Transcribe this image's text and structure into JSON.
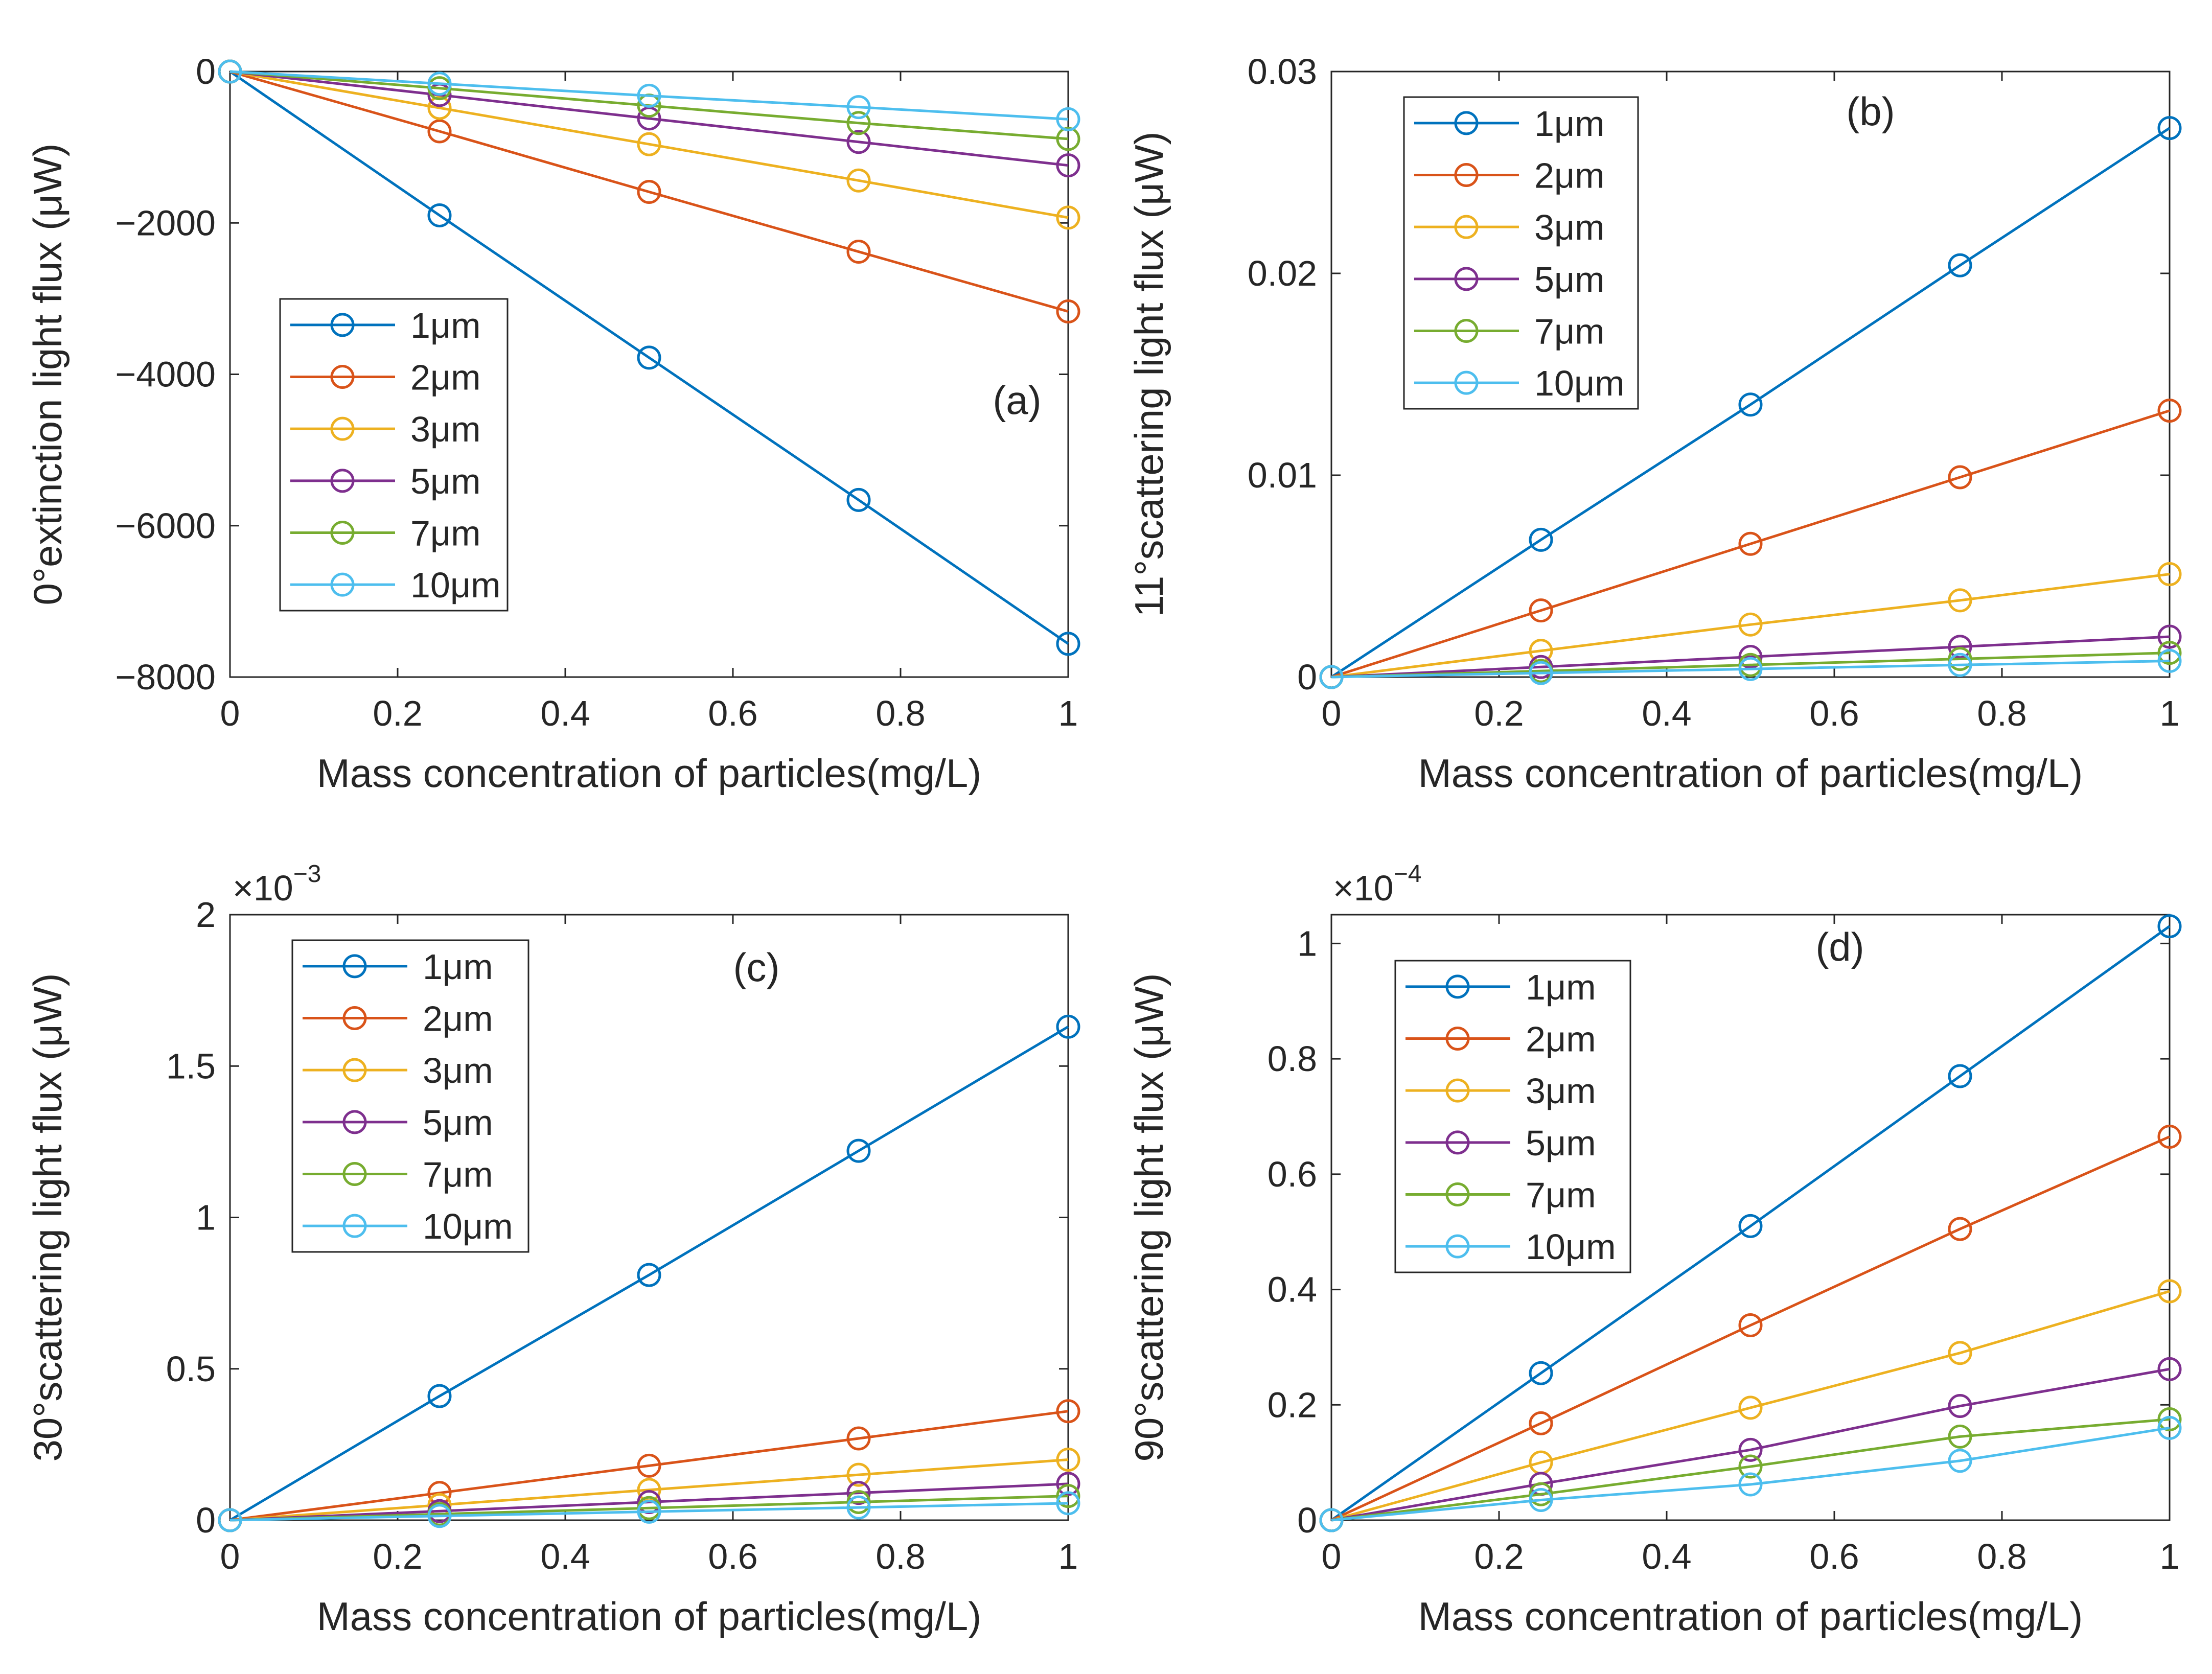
{
  "figure": {
    "panel_labels": [
      "(a)",
      "(b)",
      "(c)",
      "(d)"
    ]
  },
  "colors": {
    "1μm": "#0072BD",
    "2μm": "#D95319",
    "3μm": "#EDB120",
    "5μm": "#7E2F8E",
    "7μm": "#77AC30",
    "10μm": "#4DBEEE",
    "axis": "#262626"
  },
  "chart_data": [
    {
      "type": "line",
      "panel": "(a)",
      "title": "",
      "xlabel": "Mass concentration of particles(mg/L)",
      "ylabel": "0°extinction light flux (μW)",
      "x": [
        0,
        0.25,
        0.5,
        0.75,
        1
      ],
      "xlim": [
        0,
        1
      ],
      "ylim": [
        -8000,
        0
      ],
      "xticks": [
        0,
        0.2,
        0.4,
        0.6,
        0.8,
        1
      ],
      "xtick_labels": [
        "0",
        "0.2",
        "0.4",
        "0.6",
        "0.8",
        "1"
      ],
      "yticks": [
        0,
        -2000,
        -4000,
        -6000,
        -8000
      ],
      "ytick_labels": [
        "0",
        "−2000",
        "−4000",
        "−6000",
        "−8000"
      ],
      "exponent_label": "",
      "legend_position": "center-left",
      "marker": "circle",
      "series": [
        {
          "name": "1μm",
          "values": [
            0,
            -1900,
            -3780,
            -5660,
            -7560
          ]
        },
        {
          "name": "2μm",
          "values": [
            0,
            -790,
            -1590,
            -2380,
            -3170
          ]
        },
        {
          "name": "3μm",
          "values": [
            0,
            -480,
            -960,
            -1440,
            -1930
          ]
        },
        {
          "name": "5μm",
          "values": [
            0,
            -310,
            -620,
            -930,
            -1240
          ]
        },
        {
          "name": "7μm",
          "values": [
            0,
            -220,
            -450,
            -680,
            -890
          ]
        },
        {
          "name": "10μm",
          "values": [
            0,
            -160,
            -320,
            -470,
            -630
          ]
        }
      ]
    },
    {
      "type": "line",
      "panel": "(b)",
      "title": "",
      "xlabel": "Mass concentration of particles(mg/L)",
      "ylabel": "11°scattering light flux (μW)",
      "x": [
        0,
        0.25,
        0.5,
        0.75,
        1
      ],
      "xlim": [
        0,
        1
      ],
      "ylim": [
        0,
        0.03
      ],
      "xticks": [
        0,
        0.2,
        0.4,
        0.6,
        0.8,
        1
      ],
      "xtick_labels": [
        "0",
        "0.2",
        "0.4",
        "0.6",
        "0.8",
        "1"
      ],
      "yticks": [
        0,
        0.01,
        0.02,
        0.03
      ],
      "ytick_labels": [
        "0",
        "0.01",
        "0.02",
        "0.03"
      ],
      "exponent_label": "",
      "legend_position": "top-left",
      "marker": "circle",
      "series": [
        {
          "name": "1μm",
          "values": [
            0,
            0.0068,
            0.0135,
            0.0204,
            0.0272
          ]
        },
        {
          "name": "2μm",
          "values": [
            0,
            0.0033,
            0.0066,
            0.0099,
            0.0132
          ]
        },
        {
          "name": "3μm",
          "values": [
            0,
            0.0013,
            0.0026,
            0.0038,
            0.0051
          ]
        },
        {
          "name": "5μm",
          "values": [
            0,
            0.0005,
            0.001,
            0.0015,
            0.002
          ]
        },
        {
          "name": "7μm",
          "values": [
            0,
            0.0003,
            0.0006,
            0.0009,
            0.0012
          ]
        },
        {
          "name": "10μm",
          "values": [
            0,
            0.0002,
            0.0004,
            0.0006,
            0.0008
          ]
        }
      ]
    },
    {
      "type": "line",
      "panel": "(c)",
      "title": "",
      "xlabel": "Mass concentration of particles(mg/L)",
      "ylabel": "30°scattering light flux (μW)",
      "x": [
        0,
        0.25,
        0.5,
        0.75,
        1
      ],
      "xlim": [
        0,
        1
      ],
      "ylim": [
        0,
        2
      ],
      "xticks": [
        0,
        0.2,
        0.4,
        0.6,
        0.8,
        1
      ],
      "xtick_labels": [
        "0",
        "0.2",
        "0.4",
        "0.6",
        "0.8",
        "1"
      ],
      "yticks": [
        0,
        0.5,
        1,
        1.5,
        2
      ],
      "ytick_labels": [
        "0",
        "0.5",
        "1",
        "1.5",
        "2"
      ],
      "exponent_label": "×10",
      "exponent_power": "−3",
      "legend_position": "top-left",
      "marker": "circle",
      "series": [
        {
          "name": "1μm",
          "values": [
            0,
            0.41,
            0.81,
            1.22,
            1.63
          ]
        },
        {
          "name": "2μm",
          "values": [
            0,
            0.09,
            0.18,
            0.27,
            0.36
          ]
        },
        {
          "name": "3μm",
          "values": [
            0,
            0.05,
            0.1,
            0.15,
            0.2
          ]
        },
        {
          "name": "5μm",
          "values": [
            0,
            0.03,
            0.06,
            0.09,
            0.12
          ]
        },
        {
          "name": "7μm",
          "values": [
            0,
            0.02,
            0.04,
            0.06,
            0.08
          ]
        },
        {
          "name": "10μm",
          "values": [
            0,
            0.014,
            0.028,
            0.042,
            0.056
          ]
        }
      ]
    },
    {
      "type": "line",
      "panel": "(d)",
      "title": "",
      "xlabel": "Mass concentration of particles(mg/L)",
      "ylabel": "90°scattering light flux (μW)",
      "x": [
        0,
        0.25,
        0.5,
        0.75,
        1
      ],
      "xlim": [
        0,
        1
      ],
      "ylim": [
        0,
        1.05
      ],
      "xticks": [
        0,
        0.2,
        0.4,
        0.6,
        0.8,
        1
      ],
      "xtick_labels": [
        "0",
        "0.2",
        "0.4",
        "0.6",
        "0.8",
        "1"
      ],
      "yticks": [
        0,
        0.2,
        0.4,
        0.6,
        0.8,
        1
      ],
      "ytick_labels": [
        "0",
        "0.2",
        "0.4",
        "0.6",
        "0.8",
        "1"
      ],
      "exponent_label": "×10",
      "exponent_power": "−4",
      "legend_position": "top-left",
      "marker": "circle",
      "series": [
        {
          "name": "1μm",
          "values": [
            0,
            0.255,
            0.51,
            0.77,
            1.03
          ]
        },
        {
          "name": "2μm",
          "values": [
            0,
            0.168,
            0.338,
            0.505,
            0.665
          ]
        },
        {
          "name": "3μm",
          "values": [
            0,
            0.1,
            0.195,
            0.29,
            0.397
          ]
        },
        {
          "name": "5μm",
          "values": [
            0,
            0.063,
            0.122,
            0.198,
            0.262
          ]
        },
        {
          "name": "7μm",
          "values": [
            0,
            0.045,
            0.093,
            0.145,
            0.175
          ]
        },
        {
          "name": "10μm",
          "values": [
            0,
            0.035,
            0.062,
            0.103,
            0.16
          ]
        }
      ]
    }
  ]
}
